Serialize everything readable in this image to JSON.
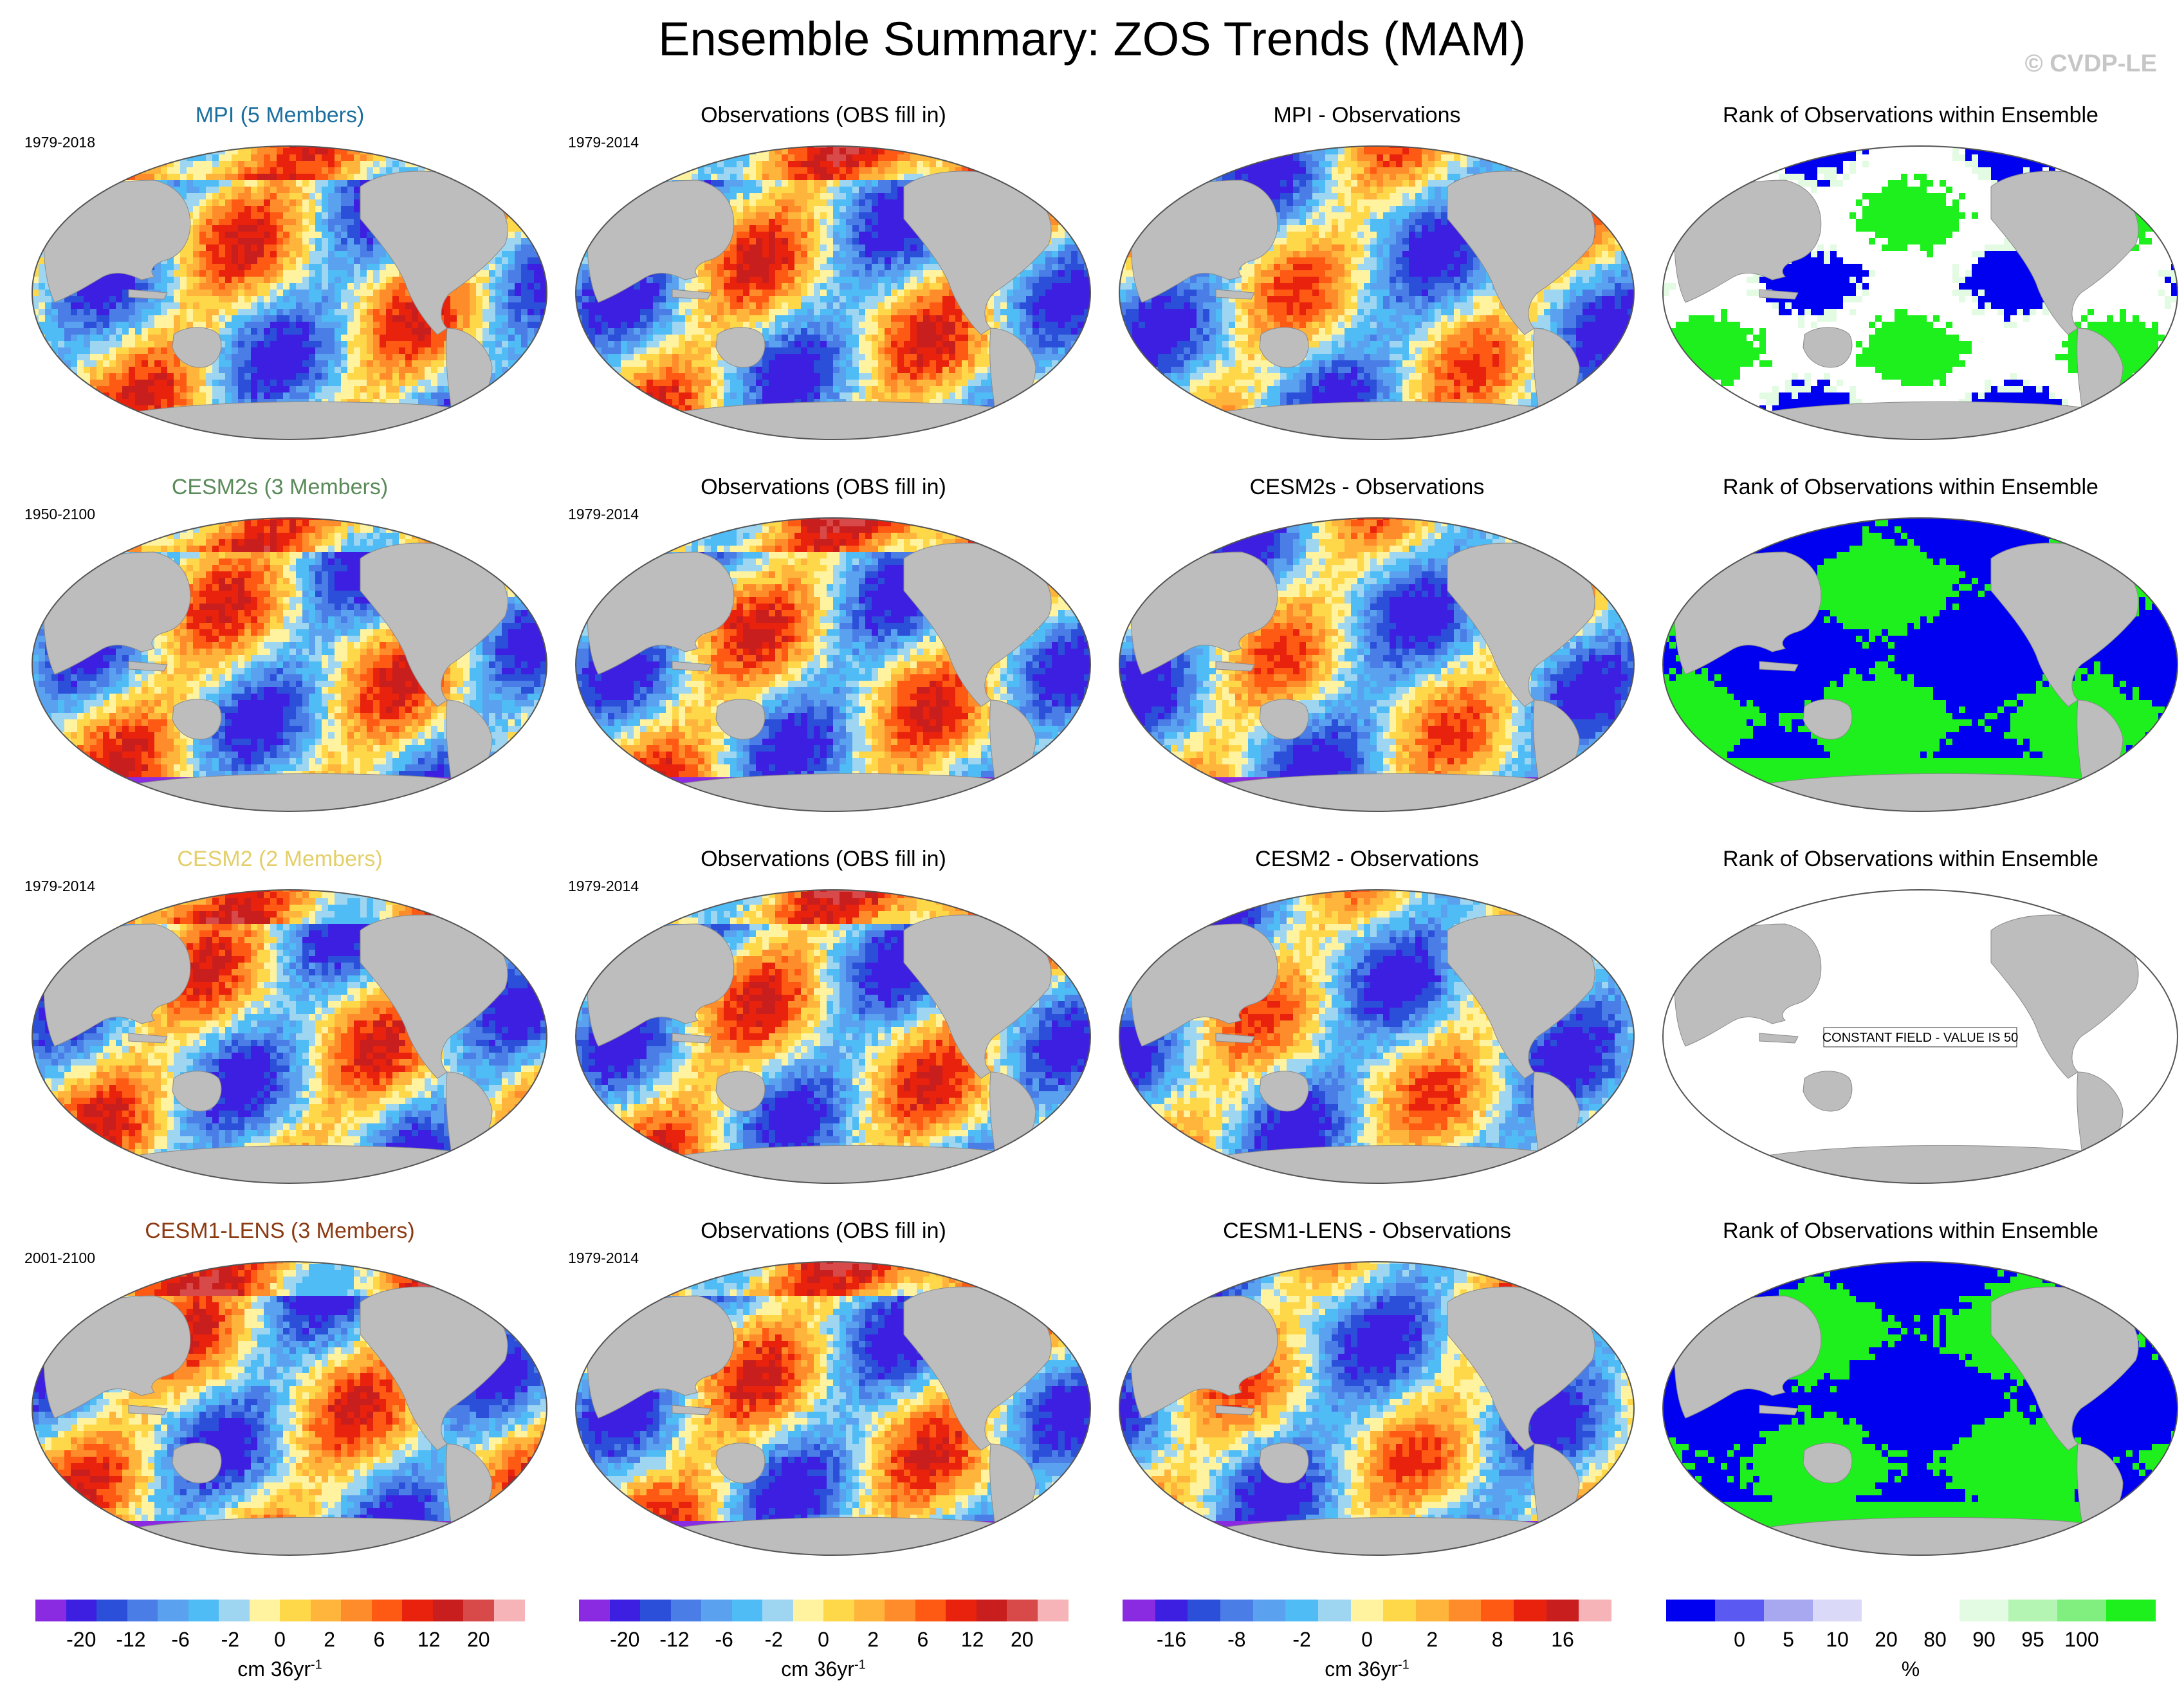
{
  "title": "Ensemble Summary: ZOS Trends (MAM)",
  "copyright": "© CVDP-LE",
  "colors": {
    "land": "#bdbdbd",
    "seaice_pink": "#f6b3b8"
  },
  "rows": [
    {
      "model": {
        "title": "MPI (5 Members)",
        "title_color": "#1b6f9f",
        "period": "1979-2018"
      },
      "obs": {
        "title": "Observations (OBS fill in)",
        "period": "1979-2014"
      },
      "diff": {
        "title": "MPI - Observations"
      },
      "rank": {
        "title": "Rank of Observations within Ensemble",
        "mode": "mixed"
      }
    },
    {
      "model": {
        "title": "CESM2s (3 Members)",
        "title_color": "#5a8a5a",
        "period": "1950-2100"
      },
      "obs": {
        "title": "Observations (OBS fill in)",
        "period": "1979-2014"
      },
      "diff": {
        "title": "CESM2s - Observations"
      },
      "rank": {
        "title": "Rank of Observations within Ensemble",
        "mode": "bluegreen"
      }
    },
    {
      "model": {
        "title": "CESM2 (2 Members)",
        "title_color": "#e3cf6a",
        "period": "1979-2014"
      },
      "obs": {
        "title": "Observations (OBS fill in)",
        "period": "1979-2014"
      },
      "diff": {
        "title": "CESM2 - Observations"
      },
      "rank": {
        "title": "Rank of Observations within Ensemble",
        "mode": "constant",
        "note": "CONSTANT FIELD - VALUE IS 50"
      }
    },
    {
      "model": {
        "title": "CESM1-LENS (3 Members)",
        "title_color": "#8b3a12",
        "period": "2001-2100"
      },
      "obs": {
        "title": "Observations (OBS fill in)",
        "period": "1979-2014"
      },
      "diff": {
        "title": "CESM1-LENS - Observations"
      },
      "rank": {
        "title": "Rank of Observations within Ensemble",
        "mode": "bluegreen"
      }
    }
  ],
  "colorbars": [
    {
      "colors": [
        "#8a2be2",
        "#3c1fe0",
        "#2b4fd8",
        "#4a7de6",
        "#5aa2f0",
        "#4fbcf5",
        "#9ed6f2",
        "#fff3a0",
        "#ffd84a",
        "#ffb43c",
        "#ff8c2a",
        "#ff5a14",
        "#e8220c",
        "#c81e1e",
        "#d84a4a",
        "#f6b3b8"
      ],
      "ticks": [
        "-20",
        "-12",
        "-6",
        "-2",
        "0",
        "2",
        "6",
        "12",
        "20"
      ],
      "unit": "cm 36yr",
      "unit_sup": "-1"
    },
    {
      "colors": [
        "#8a2be2",
        "#3c1fe0",
        "#2b4fd8",
        "#4a7de6",
        "#5aa2f0",
        "#4fbcf5",
        "#9ed6f2",
        "#fff3a0",
        "#ffd84a",
        "#ffb43c",
        "#ff8c2a",
        "#ff5a14",
        "#e8220c",
        "#c81e1e",
        "#d84a4a",
        "#f6b3b8"
      ],
      "ticks": [
        "-20",
        "-12",
        "-6",
        "-2",
        "0",
        "2",
        "6",
        "12",
        "20"
      ],
      "unit": "cm 36yr",
      "unit_sup": "-1"
    },
    {
      "colors": [
        "#8a2be2",
        "#3c1fe0",
        "#2b4fd8",
        "#4a7de6",
        "#5aa2f0",
        "#4fbcf5",
        "#9ed6f2",
        "#fff3a0",
        "#ffd84a",
        "#ffb43c",
        "#ff8c2a",
        "#ff5a14",
        "#e8220c",
        "#c81e1e",
        "#f6b3b8"
      ],
      "ticks": [
        "-16",
        "-8",
        "-2",
        "0",
        "2",
        "8",
        "16"
      ],
      "unit": "cm 36yr",
      "unit_sup": "-1"
    },
    {
      "colors": [
        "#0000f0",
        "#5a5af2",
        "#a8a8f0",
        "#dadaf8",
        "#ffffff",
        "#ffffff",
        "#e2fbe2",
        "#b4f5b4",
        "#80ef80",
        "#1ef01e"
      ],
      "ticks": [
        "0",
        "5",
        "10",
        "20",
        "80",
        "90",
        "95",
        "100"
      ],
      "unit": "%",
      "unit_sup": ""
    }
  ]
}
